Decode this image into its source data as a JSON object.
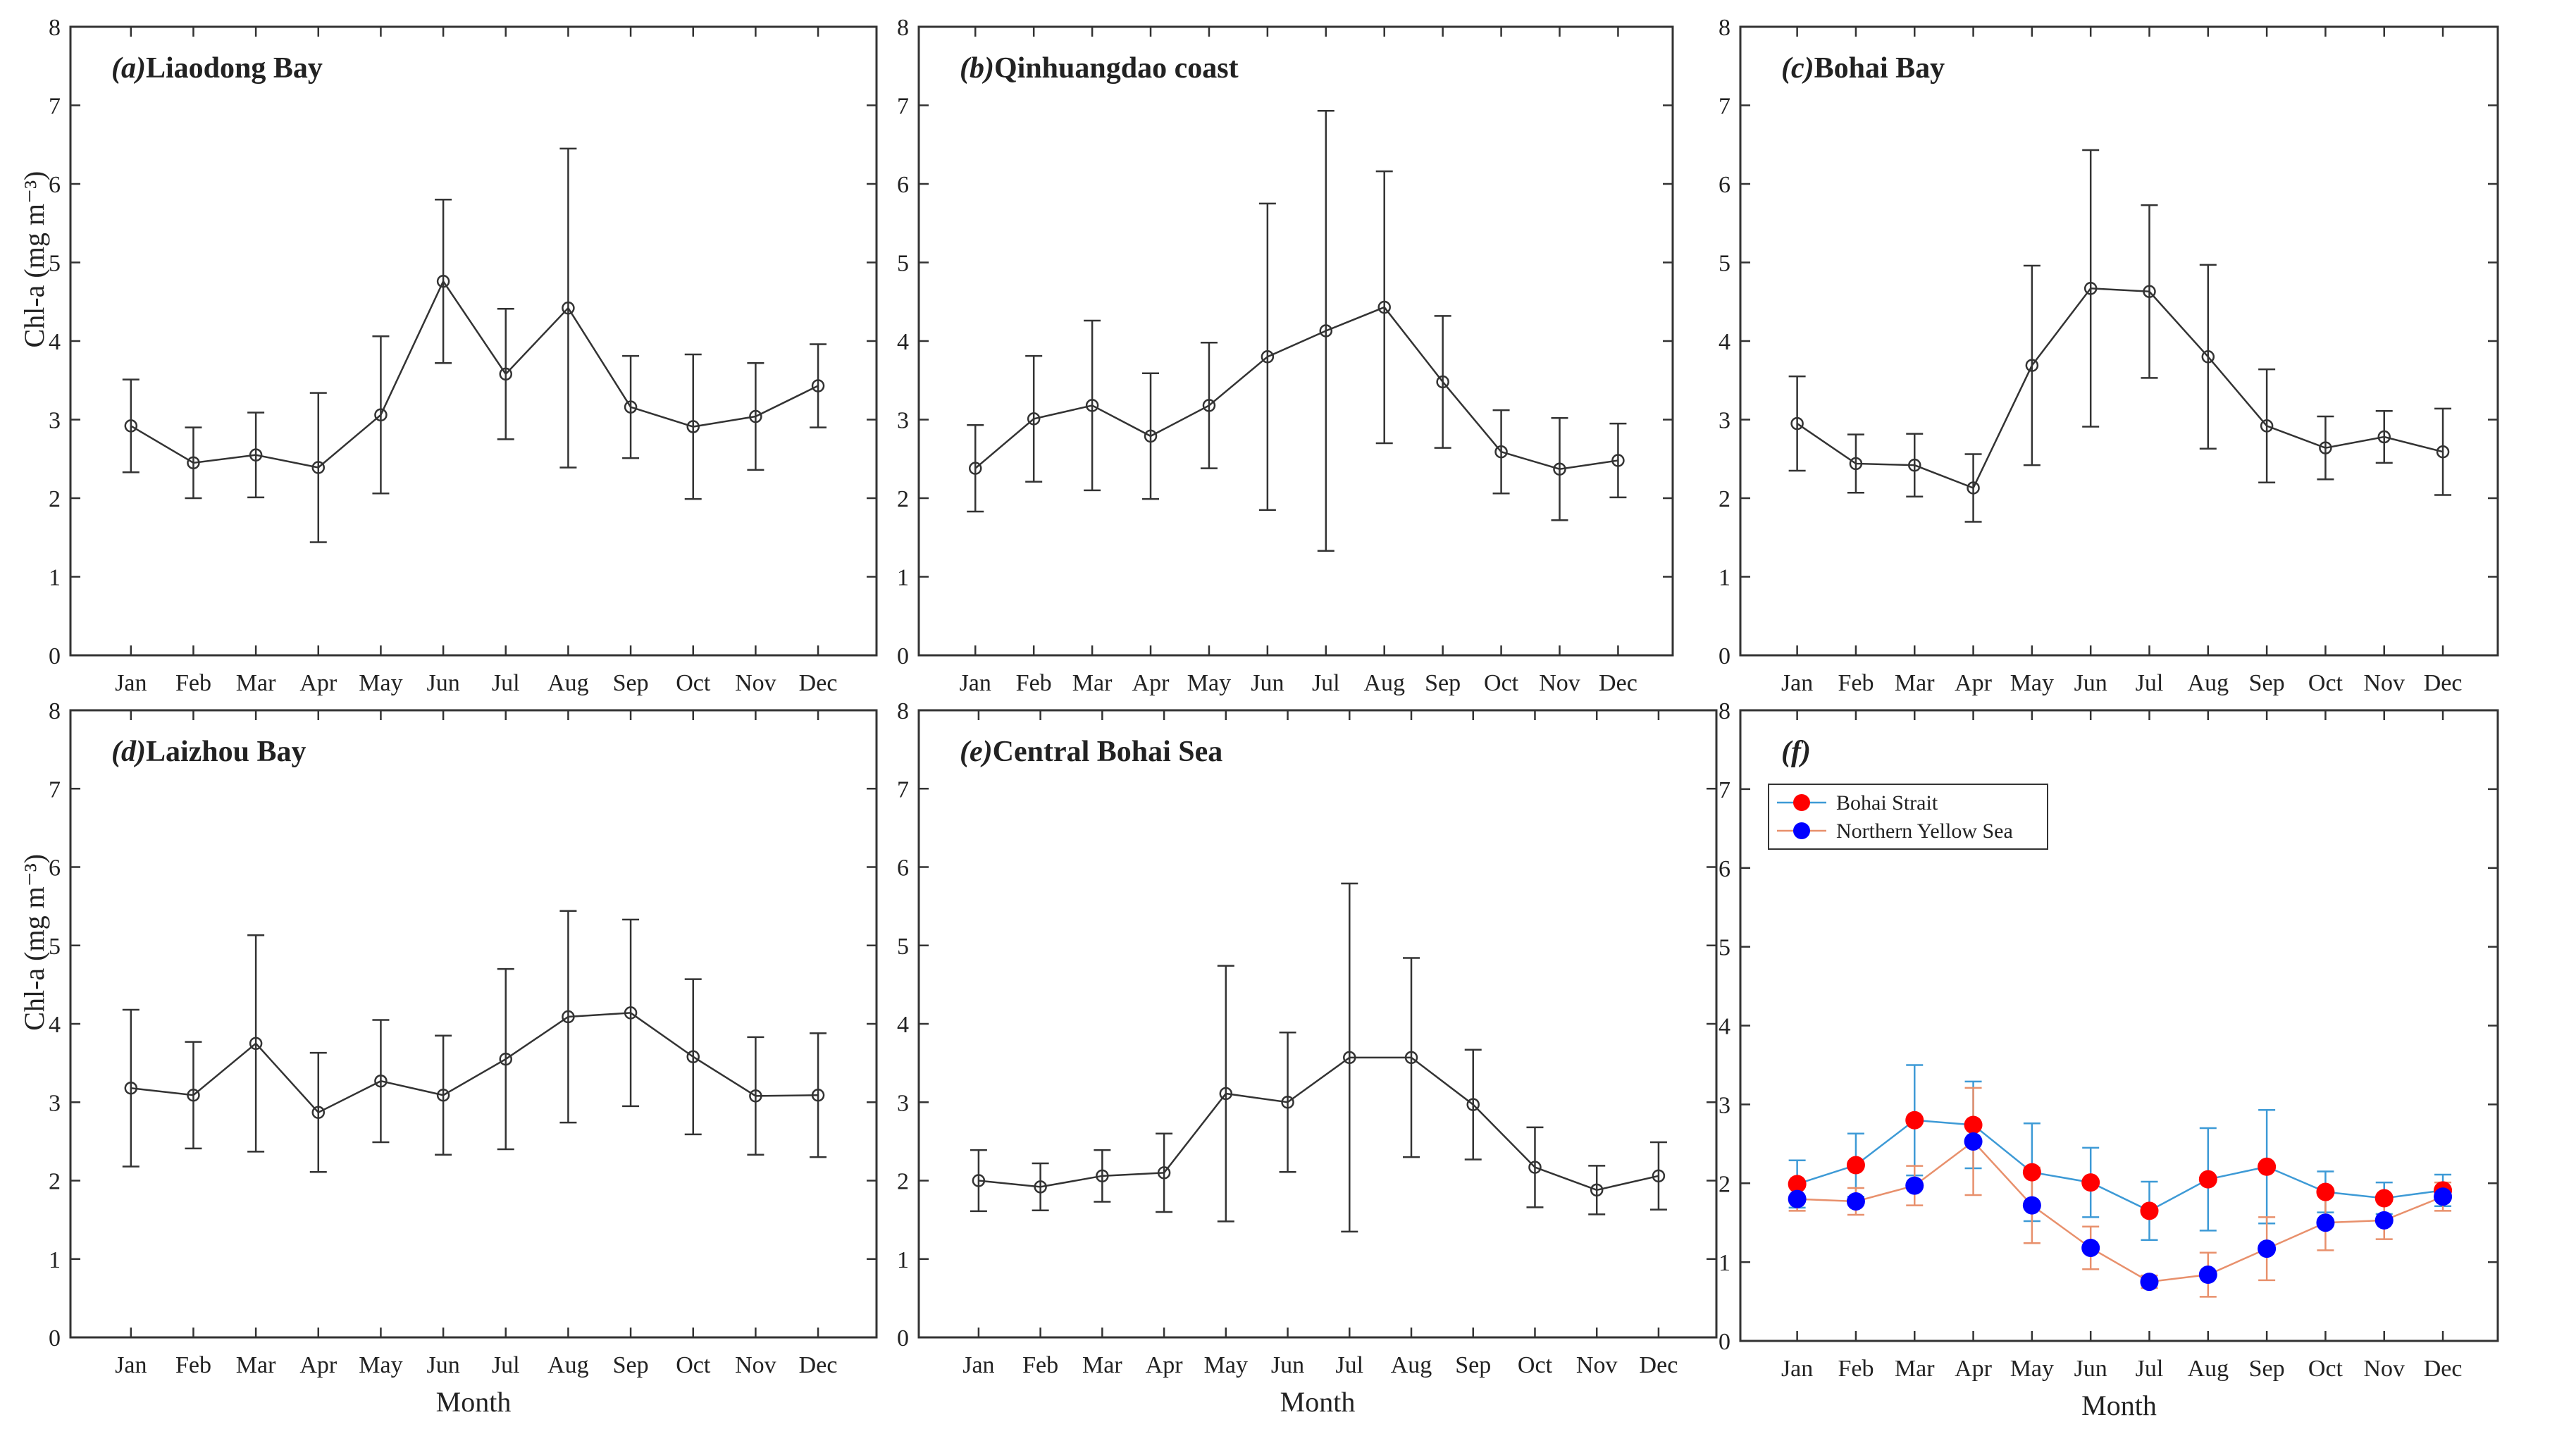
{
  "figure": {
    "xlabel": "Month",
    "ylabel": "Chl-a (mg m⁻³)"
  },
  "colors": {
    "line": "#333333",
    "bohai_strait": "#ff0000",
    "bohai_strait_line": "#3d9ad6",
    "northern_yellow_sea": "#0000ff",
    "northern_yellow_sea_line": "#e8906c"
  },
  "chart_data": [
    {
      "type": "line",
      "panel_label": "(a)",
      "title": "Liaodong Bay",
      "categories": [
        "Jan",
        "Feb",
        "Mar",
        "Apr",
        "May",
        "Jun",
        "Jul",
        "Aug",
        "Sep",
        "Oct",
        "Nov",
        "Dec"
      ],
      "values": [
        2.92,
        2.45,
        2.55,
        2.39,
        3.06,
        4.76,
        3.58,
        4.42,
        3.16,
        2.91,
        3.04,
        3.43
      ],
      "error": [
        0.59,
        0.45,
        0.54,
        0.95,
        1.0,
        1.04,
        0.83,
        2.03,
        0.65,
        0.92,
        0.68,
        0.53
      ],
      "ylim": [
        0,
        8
      ],
      "yticks": [
        0,
        1,
        2,
        3,
        4,
        5,
        6,
        7,
        8
      ],
      "xlabel": "",
      "ylabel": "Chl-a (mg m⁻³)"
    },
    {
      "type": "line",
      "panel_label": "(b)",
      "title": "Qinhuangdao coast",
      "categories": [
        "Jan",
        "Feb",
        "Mar",
        "Apr",
        "May",
        "Jun",
        "Jul",
        "Aug",
        "Sep",
        "Oct",
        "Nov",
        "Dec"
      ],
      "values": [
        2.38,
        3.01,
        3.18,
        2.79,
        3.18,
        3.8,
        4.13,
        4.43,
        3.48,
        2.59,
        2.37,
        2.48
      ],
      "error": [
        0.55,
        0.8,
        1.08,
        0.8,
        0.8,
        1.95,
        2.8,
        1.73,
        0.84,
        0.53,
        0.65,
        0.47
      ],
      "ylim": [
        0,
        8
      ],
      "yticks": [
        0,
        1,
        2,
        3,
        4,
        5,
        6,
        7,
        8
      ],
      "xlabel": "",
      "ylabel": ""
    },
    {
      "type": "line",
      "panel_label": "(c)",
      "title": "Bohai Bay",
      "categories": [
        "Jan",
        "Feb",
        "Mar",
        "Apr",
        "May",
        "Jun",
        "Jul",
        "Aug",
        "Sep",
        "Oct",
        "Nov",
        "Dec"
      ],
      "values": [
        2.95,
        2.44,
        2.42,
        2.13,
        3.69,
        4.67,
        4.63,
        3.8,
        2.92,
        2.64,
        2.78,
        2.59
      ],
      "error": [
        0.6,
        0.37,
        0.4,
        0.43,
        1.27,
        1.76,
        1.1,
        1.17,
        0.72,
        0.4,
        0.33,
        0.55
      ],
      "ylim": [
        0,
        8
      ],
      "yticks": [
        0,
        1,
        2,
        3,
        4,
        5,
        6,
        7,
        8
      ],
      "xlabel": "",
      "ylabel": ""
    },
    {
      "type": "line",
      "panel_label": "(d)",
      "title": "Laizhou Bay",
      "categories": [
        "Jan",
        "Feb",
        "Mar",
        "Apr",
        "May",
        "Jun",
        "Jul",
        "Aug",
        "Sep",
        "Oct",
        "Nov",
        "Dec"
      ],
      "values": [
        3.18,
        3.09,
        3.75,
        2.87,
        3.27,
        3.09,
        3.55,
        4.09,
        4.14,
        3.58,
        3.08,
        3.09
      ],
      "error": [
        1.0,
        0.68,
        1.38,
        0.76,
        0.78,
        0.76,
        1.15,
        1.35,
        1.19,
        0.99,
        0.75,
        0.79
      ],
      "ylim": [
        0,
        8
      ],
      "yticks": [
        0,
        1,
        2,
        3,
        4,
        5,
        6,
        7,
        8
      ],
      "xlabel": "Month",
      "ylabel": "Chl-a (mg m⁻³)"
    },
    {
      "type": "line",
      "panel_label": "(e)",
      "title": "Central Bohai Sea",
      "categories": [
        "Jan",
        "Feb",
        "Mar",
        "Apr",
        "May",
        "Jun",
        "Jul",
        "Aug",
        "Sep",
        "Oct",
        "Nov",
        "Dec"
      ],
      "values": [
        2.0,
        1.92,
        2.06,
        2.1,
        3.11,
        3.0,
        3.57,
        3.57,
        2.97,
        2.17,
        1.88,
        2.06
      ],
      "error": [
        0.39,
        0.3,
        0.33,
        0.5,
        1.63,
        0.89,
        2.22,
        1.27,
        0.7,
        0.51,
        0.31,
        0.43
      ],
      "ylim": [
        0,
        8
      ],
      "yticks": [
        0,
        1,
        2,
        3,
        4,
        5,
        6,
        7,
        8
      ],
      "xlabel": "Month",
      "ylabel": ""
    },
    {
      "type": "line",
      "panel_label": "(f)",
      "title": "",
      "categories": [
        "Jan",
        "Feb",
        "Mar",
        "Apr",
        "May",
        "Jun",
        "Jul",
        "Aug",
        "Sep",
        "Oct",
        "Nov",
        "Dec"
      ],
      "series": [
        {
          "name": "Bohai Strait",
          "values": [
            1.99,
            2.23,
            2.8,
            2.74,
            2.14,
            2.01,
            1.65,
            2.05,
            2.21,
            1.89,
            1.81,
            1.91
          ],
          "error": [
            0.3,
            0.4,
            0.7,
            0.55,
            0.62,
            0.44,
            0.37,
            0.65,
            0.72,
            0.26,
            0.2,
            0.2
          ]
        },
        {
          "name": "Northern Yellow Sea",
          "values": [
            1.8,
            1.77,
            1.97,
            2.53,
            1.72,
            1.18,
            0.75,
            0.84,
            1.17,
            1.5,
            1.53,
            1.83
          ],
          "error": [
            0.15,
            0.17,
            0.25,
            0.68,
            0.48,
            0.27,
            0.08,
            0.28,
            0.4,
            0.35,
            0.24,
            0.18
          ]
        }
      ],
      "legend_position": "top-left",
      "ylim": [
        0,
        8
      ],
      "yticks": [
        0,
        1,
        2,
        3,
        4,
        5,
        6,
        7,
        8
      ],
      "xlabel": "Month",
      "ylabel": ""
    }
  ]
}
